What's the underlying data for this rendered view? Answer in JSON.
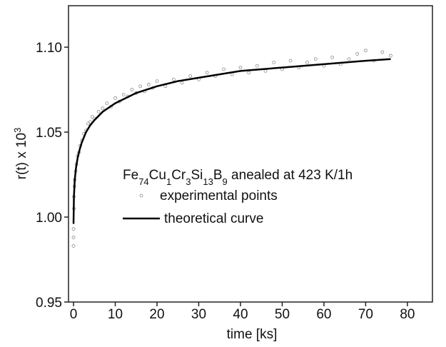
{
  "chart_data": {
    "type": "scatter",
    "annotation": [
      {
        "text": "Fe"
      },
      {
        "text": "74",
        "sub": true
      },
      {
        "text": "Cu"
      },
      {
        "text": "1",
        "sub": true
      },
      {
        "text": "Cr"
      },
      {
        "text": "3",
        "sub": true
      },
      {
        "text": "Si"
      },
      {
        "text": "13",
        "sub": true
      },
      {
        "text": "B"
      },
      {
        "text": "9",
        "sub": true
      },
      {
        "text": " anealed at 423 K/1h"
      }
    ],
    "x_label": "time [ks]",
    "y_label": [
      {
        "text": "r(t) x 10"
      },
      {
        "text": "3",
        "sup": true
      }
    ],
    "xlim": [
      -1.2,
      86
    ],
    "ylim": [
      0.95,
      1.1244
    ],
    "xticks": [
      0,
      10,
      20,
      30,
      40,
      50,
      60,
      70,
      80
    ],
    "yticks": [
      0.95,
      {
        "value": 1.0,
        "label": "1.00"
      },
      1.05,
      {
        "value": 1.1,
        "label": "1.10"
      }
    ],
    "series": [
      {
        "name": "experimental points",
        "mode": "markers",
        "color": "#8a8a8a",
        "x": [
          0,
          0,
          0,
          0.1,
          0.1,
          0.2,
          0.3,
          0.5,
          0.7,
          1,
          1.3,
          1.6,
          2,
          2.5,
          3,
          3.5,
          4,
          4.5,
          5,
          6,
          7,
          8,
          9,
          10,
          11,
          12,
          13,
          14,
          15,
          16,
          17,
          18,
          19,
          20,
          22,
          24,
          26,
          28,
          30,
          32,
          34,
          36,
          38,
          40,
          42,
          44,
          46,
          48,
          50,
          52,
          54,
          56,
          58,
          60,
          62,
          64,
          66,
          68,
          70,
          72,
          74,
          76
        ],
        "y": [
          0.983,
          0.988,
          0.993,
          1.005,
          1.012,
          1.018,
          1.022,
          1.027,
          1.031,
          1.036,
          1.038,
          1.042,
          1.045,
          1.049,
          1.051,
          1.055,
          1.056,
          1.059,
          1.058,
          1.062,
          1.064,
          1.067,
          1.065,
          1.07,
          1.068,
          1.072,
          1.071,
          1.075,
          1.073,
          1.077,
          1.074,
          1.078,
          1.076,
          1.08,
          1.077,
          1.081,
          1.079,
          1.083,
          1.081,
          1.085,
          1.083,
          1.087,
          1.084,
          1.088,
          1.085,
          1.089,
          1.086,
          1.091,
          1.087,
          1.092,
          1.088,
          1.091,
          1.093,
          1.089,
          1.094,
          1.09,
          1.093,
          1.096,
          1.098,
          1.092,
          1.097,
          1.095
        ]
      },
      {
        "name": "theoretical curve",
        "mode": "line",
        "color": "#000000",
        "x": [
          0,
          0.1,
          0.3,
          0.6,
          1,
          1.5,
          2,
          3,
          4,
          5,
          7,
          10,
          15,
          20,
          25,
          30,
          40,
          50,
          60,
          70,
          76
        ],
        "y": [
          0.996,
          1.012,
          1.022,
          1.029,
          1.035,
          1.04,
          1.044,
          1.05,
          1.054,
          1.057,
          1.062,
          1.067,
          1.073,
          1.077,
          1.08,
          1.082,
          1.086,
          1.088,
          1.09,
          1.092,
          1.093
        ]
      }
    ]
  }
}
